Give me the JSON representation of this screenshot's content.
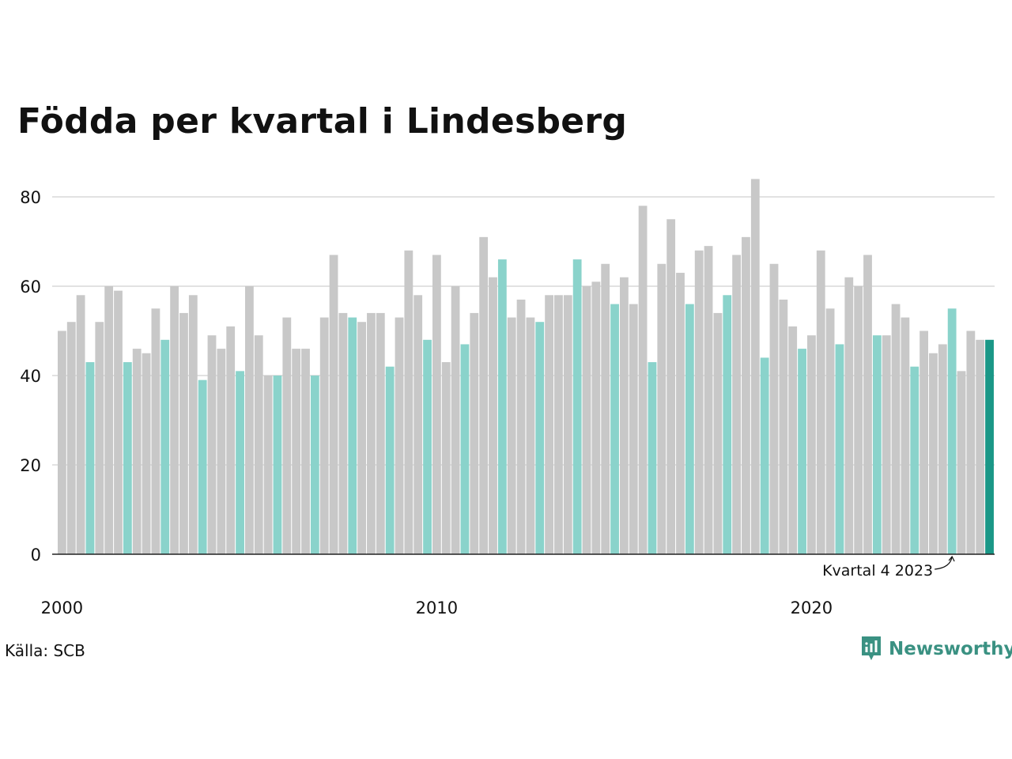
{
  "title": "Födda per kvartal i Lindesberg",
  "source": "Källa: SCB",
  "brand": {
    "name": "Newsworthy"
  },
  "colors": {
    "regular": "#c8c8c8",
    "q4": "#8ad3cb",
    "latest": "#1a9787",
    "grid": "#e2e2e2",
    "axis": "#222222",
    "brand": "#3a9182"
  },
  "chart_data": {
    "type": "bar",
    "title": "Födda per kvartal i Lindesberg",
    "xlabel": "",
    "ylabel": "",
    "ylim": [
      0,
      87
    ],
    "yticks": [
      0,
      20,
      40,
      60,
      80
    ],
    "xticks": [
      "2000",
      "2010",
      "2020"
    ],
    "grid": true,
    "highlight_rule": "fourth quarter of each year highlighted; latest quarter emphasized",
    "annotation": "Kvartal 4 2023",
    "categories": [
      "2000 K1",
      "2000 K2",
      "2000 K3",
      "2000 K4",
      "2001 K1",
      "2001 K2",
      "2001 K3",
      "2001 K4",
      "2002 K1",
      "2002 K2",
      "2002 K3",
      "2002 K4",
      "2003 K1",
      "2003 K2",
      "2003 K3",
      "2003 K4",
      "2004 K1",
      "2004 K2",
      "2004 K3",
      "2004 K4",
      "2005 K1",
      "2005 K2",
      "2005 K3",
      "2005 K4",
      "2006 K1",
      "2006 K2",
      "2006 K3",
      "2006 K4",
      "2007 K1",
      "2007 K2",
      "2007 K3",
      "2007 K4",
      "2008 K1",
      "2008 K2",
      "2008 K3",
      "2008 K4",
      "2009 K1",
      "2009 K2",
      "2009 K3",
      "2009 K4",
      "2010 K1",
      "2010 K2",
      "2010 K3",
      "2010 K4",
      "2011 K1",
      "2011 K2",
      "2011 K3",
      "2011 K4",
      "2012 K1",
      "2012 K2",
      "2012 K3",
      "2012 K4",
      "2013 K1",
      "2013 K2",
      "2013 K3",
      "2013 K4",
      "2014 K1",
      "2014 K2",
      "2014 K3",
      "2014 K4",
      "2015 K1",
      "2015 K2",
      "2015 K3",
      "2015 K4",
      "2016 K1",
      "2016 K2",
      "2016 K3",
      "2016 K4",
      "2017 K1",
      "2017 K2",
      "2017 K3",
      "2017 K4",
      "2018 K1",
      "2018 K2",
      "2018 K3",
      "2018 K4",
      "2019 K1",
      "2019 K2",
      "2019 K3",
      "2019 K4",
      "2020 K1",
      "2020 K2",
      "2020 K3",
      "2020 K4",
      "2021 K1",
      "2021 K2",
      "2021 K3",
      "2021 K4",
      "2022 K1",
      "2022 K2",
      "2022 K3",
      "2022 K4",
      "2023 K1",
      "2023 K2",
      "2023 K3",
      "2023 K4",
      "2024 K1",
      "2024 K2",
      "2024 K3",
      "2024 K4"
    ],
    "values": [
      50,
      52,
      58,
      43,
      52,
      60,
      59,
      43,
      46,
      45,
      55,
      48,
      60,
      54,
      58,
      39,
      49,
      46,
      51,
      41,
      60,
      49,
      40,
      40,
      53,
      46,
      46,
      40,
      53,
      67,
      54,
      53,
      52,
      54,
      54,
      42,
      53,
      68,
      58,
      48,
      67,
      43,
      60,
      47,
      54,
      71,
      62,
      66,
      53,
      57,
      53,
      52,
      58,
      58,
      58,
      66,
      60,
      61,
      65,
      56,
      62,
      56,
      78,
      43,
      65,
      75,
      63,
      56,
      68,
      69,
      54,
      58,
      67,
      71,
      84,
      44,
      65,
      57,
      51,
      46,
      49,
      68,
      55,
      47,
      62,
      60,
      67,
      49,
      49,
      56,
      53,
      42,
      50,
      45,
      47,
      55,
      41,
      50,
      48,
      48
    ]
  }
}
